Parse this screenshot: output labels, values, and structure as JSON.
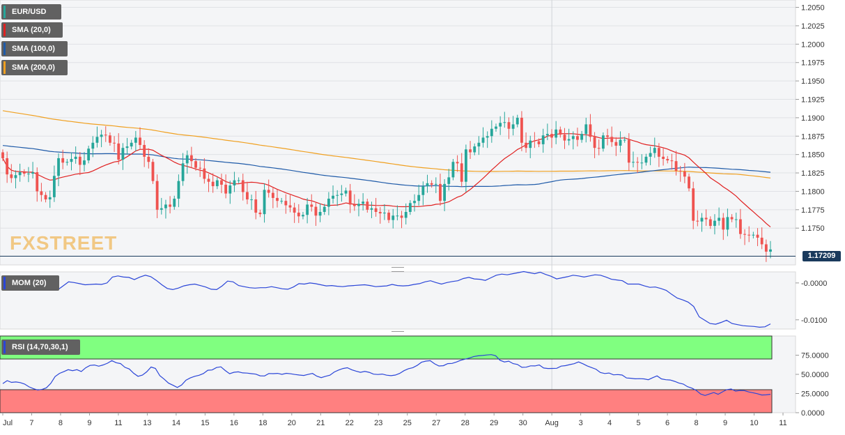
{
  "legend": {
    "symbol": "EUR/USD",
    "sma20": "SMA (20,0)",
    "sma100": "SMA (100,0)",
    "sma200": "SMA (200,0)",
    "mom": "MOM (20)",
    "rsi": "RSI (14,70,30,1)"
  },
  "colors": {
    "up": "#26a69a",
    "down": "#ef5350",
    "sma20": "#e02020",
    "sma100": "#1e5aa8",
    "sma200": "#f0a020",
    "mom": "#2a45d8",
    "rsi": "#2a45d8",
    "overbought": "#80ff80",
    "oversold": "#ff8080"
  },
  "watermark": "FXSTREET",
  "last_price": "1.17209",
  "chart_data": [
    {
      "type": "candlestick",
      "ylim": [
        1.17,
        1.206
      ],
      "price_ticks": [
        "1.2050",
        "1.2025",
        "1.2000",
        "1.1975",
        "1.1950",
        "1.1925",
        "1.1900",
        "1.1875",
        "1.1850",
        "1.1825",
        "1.1800",
        "1.1775",
        "1.1750"
      ],
      "x_tick_labels": [
        "Jul",
        "7",
        "8",
        "9",
        "11",
        "13",
        "14",
        "15",
        "16",
        "18",
        "20",
        "21",
        "22",
        "23",
        "25",
        "27",
        "28",
        "29",
        "30",
        "Aug",
        "3",
        "4",
        "5",
        "6",
        "8",
        "9",
        "10",
        "11"
      ],
      "closes": [
        1.1845,
        1.1823,
        1.1818,
        1.1822,
        1.1826,
        1.1824,
        1.1824,
        1.1826,
        1.18,
        1.1795,
        1.1789,
        1.1792,
        1.1821,
        1.1845,
        1.1839,
        1.184,
        1.1844,
        1.1847,
        1.1836,
        1.1842,
        1.1858,
        1.1866,
        1.1874,
        1.1877,
        1.1876,
        1.1866,
        1.1865,
        1.1843,
        1.1859,
        1.1861,
        1.1866,
        1.1873,
        1.1863,
        1.1847,
        1.184,
        1.1814,
        1.1775,
        1.1777,
        1.1782,
        1.1779,
        1.179,
        1.1814,
        1.1838,
        1.1849,
        1.1841,
        1.1832,
        1.1831,
        1.1817,
        1.1813,
        1.1807,
        1.1815,
        1.1809,
        1.1797,
        1.1808,
        1.1815,
        1.1815,
        1.1799,
        1.1789,
        1.1789,
        1.1771,
        1.1769,
        1.1802,
        1.1798,
        1.1791,
        1.1787,
        1.1787,
        1.1781,
        1.1778,
        1.1771,
        1.1766,
        1.1768,
        1.1782,
        1.1779,
        1.1767,
        1.1772,
        1.1779,
        1.179,
        1.1794,
        1.1795,
        1.1797,
        1.1801,
        1.1782,
        1.178,
        1.1783,
        1.1786,
        1.1775,
        1.1777,
        1.1772,
        1.177,
        1.1771,
        1.1761,
        1.1767,
        1.1767,
        1.1764,
        1.1772,
        1.1784,
        1.1787,
        1.1795,
        1.1807,
        1.1811,
        1.1809,
        1.181,
        1.1787,
        1.181,
        1.1819,
        1.184,
        1.1838,
        1.1813,
        1.1857,
        1.1853,
        1.1861,
        1.1866,
        1.1873,
        1.1875,
        1.1885,
        1.1888,
        1.1893,
        1.1894,
        1.1885,
        1.1891,
        1.19,
        1.1866,
        1.1859,
        1.1869,
        1.1868,
        1.1864,
        1.1876,
        1.1878,
        1.1873,
        1.1884,
        1.1877,
        1.1869,
        1.1871,
        1.1875,
        1.187,
        1.1878,
        1.1891,
        1.1874,
        1.1859,
        1.1858,
        1.1876,
        1.1874,
        1.1867,
        1.1862,
        1.187,
        1.187,
        1.1839,
        1.184,
        1.1839,
        1.1839,
        1.1847,
        1.1852,
        1.1859,
        1.1847,
        1.1844,
        1.1842,
        1.1841,
        1.1828,
        1.1827,
        1.182,
        1.1804,
        1.176,
        1.1759,
        1.1764,
        1.1762,
        1.1753,
        1.176,
        1.1764,
        1.1748,
        1.1765,
        1.1762,
        1.1762,
        1.1742,
        1.1741,
        1.174,
        1.1741,
        1.1737,
        1.1728,
        1.1718,
        1.1721
      ]
    },
    {
      "type": "line",
      "name": "MOM (20)",
      "ylim": [
        -0.0125,
        0.003
      ],
      "ticks": [
        "-0.0000",
        "-0.0100"
      ],
      "values": [
        0.0003,
        -0.0012,
        -0.0008,
        -0.0007,
        -0.0005,
        -0.0004,
        0.0001,
        -0.0003,
        -0.001,
        -0.0018,
        -0.0019,
        -0.0008,
        0.0003,
        0.0001,
        -0.0002,
        -0.0005,
        -0.0004,
        -0.0003,
        -0.0004,
        0.0,
        0.0016,
        0.0019,
        0.0016,
        0.0015,
        0.0009,
        0.0016,
        0.0021,
        0.0017,
        0.0007,
        -0.0005,
        -0.0015,
        -0.0018,
        -0.0014,
        -0.0008,
        -0.0005,
        -0.0003,
        -0.0007,
        -0.0011,
        -0.0017,
        -0.0018,
        -0.0008,
        0.0005,
        0.0003,
        -0.0007,
        -0.001,
        -0.0013,
        -0.0014,
        -0.0013,
        -0.0013,
        -0.001,
        -0.0013,
        -0.0016,
        -0.0017,
        -0.0011,
        -0.0002,
        -0.0003,
        -0.0,
        -0.0002,
        -0.0005,
        -0.0008,
        -0.0007,
        -0.0009,
        -0.001,
        -0.0008,
        -0.0007,
        -0.0006,
        -0.0005,
        -0.0007,
        -0.001,
        -0.0009,
        -0.0008,
        -0.0004,
        -0.0007,
        -0.0008,
        -0.0007,
        -0.0004,
        -0.0002,
        0.0003,
        0.0006,
        0.0001,
        -0.0003,
        0.0001,
        0.0004,
        0.0006,
        0.0012,
        0.0015,
        0.0011,
        0.001,
        0.0007,
        0.0014,
        0.0021,
        0.0024,
        0.0022,
        0.0025,
        0.0028,
        0.0031,
        0.0028,
        0.0025,
        0.0029,
        0.0023,
        0.0018,
        0.0011,
        0.0014,
        0.0017,
        0.0021,
        0.0019,
        0.0016,
        0.0019,
        0.0022,
        0.0021,
        0.0016,
        0.001,
        0.0008,
        0.0006,
        -0.0003,
        -0.0003,
        -0.0003,
        -0.0008,
        -0.0012,
        -0.0011,
        -0.0015,
        -0.002,
        -0.0031,
        -0.0041,
        -0.0046,
        -0.0052,
        -0.0064,
        -0.0092,
        -0.0101,
        -0.011,
        -0.0112,
        -0.0107,
        -0.0101,
        -0.011,
        -0.0113,
        -0.0116,
        -0.0117,
        -0.0118,
        -0.012,
        -0.0119,
        -0.0111
      ]
    },
    {
      "type": "line",
      "name": "RSI (14,70,30,1)",
      "ylim": [
        0,
        100
      ],
      "ticks": [
        "75.0000",
        "50.0000",
        "25.0000",
        "0.0000"
      ],
      "overbought": 70,
      "oversold": 30,
      "values": [
        38.0,
        41.8,
        39.5,
        40.1,
        39.3,
        37.4,
        33.7,
        31.5,
        29.5,
        30.4,
        32.5,
        38.3,
        47.1,
        51.3,
        53.5,
        56.1,
        54.8,
        56.1,
        53.7,
        58.5,
        61.6,
        62.2,
        60.6,
        62.3,
        64.5,
        67.9,
        65.2,
        64.0,
        59.2,
        57.0,
        51.5,
        47.5,
        49.0,
        53.3,
        59.5,
        57.7,
        48.3,
        43.7,
        38.5,
        35.8,
        32.9,
        36.1,
        42.4,
        45.4,
        47.5,
        48.8,
        51.1,
        55.4,
        55.7,
        58.9,
        59.8,
        55.0,
        50.8,
        52.7,
        53.3,
        51.9,
        51.6,
        50.9,
        50.3,
        48.1,
        47.9,
        51.1,
        50.9,
        51.3,
        50.0,
        51.4,
        50.7,
        49.8,
        49.1,
        48.5,
        49.9,
        51.2,
        47.6,
        45.7,
        47.5,
        48.9,
        53.1,
        55.6,
        57.6,
        58.6,
        56.0,
        54.2,
        52.6,
        53.8,
        52.6,
        50.3,
        49.8,
        50.4,
        48.9,
        48.3,
        49.1,
        51.3,
        54.8,
        57.4,
        58.7,
        61.6,
        65.8,
        67.3,
        67.8,
        63.7,
        60.9,
        61.3,
        64.0,
        64.3,
        66.1,
        68.4,
        69.8,
        71.3,
        73.3,
        74.2,
        74.6,
        75.3,
        75.7,
        74.3,
        68.4,
        66.2,
        67.2,
        64.0,
        62.9,
        59.2,
        59.4,
        61.1,
        61.0,
        62.3,
        58.3,
        57.6,
        57.7,
        57.9,
        60.7,
        61.4,
        62.7,
        63.9,
        66.2,
        63.8,
        61.0,
        58.8,
        56.7,
        52.5,
        51.1,
        51.7,
        49.4,
        49.7,
        49.1,
        45.3,
        44.9,
        44.2,
        44.4,
        44.1,
        43.0,
        45.6,
        48.0,
        44.1,
        43.0,
        42.6,
        40.9,
        38.7,
        37.4,
        33.9,
        32.0,
        29.0,
        24.4,
        22.5,
        24.4,
        26.3,
        24.0,
        27.2,
        30.1,
        30.9,
        28.2,
        28.9,
        28.8,
        27.1,
        26.0,
        24.7,
        23.1,
        23.3,
        24.0
      ]
    }
  ]
}
